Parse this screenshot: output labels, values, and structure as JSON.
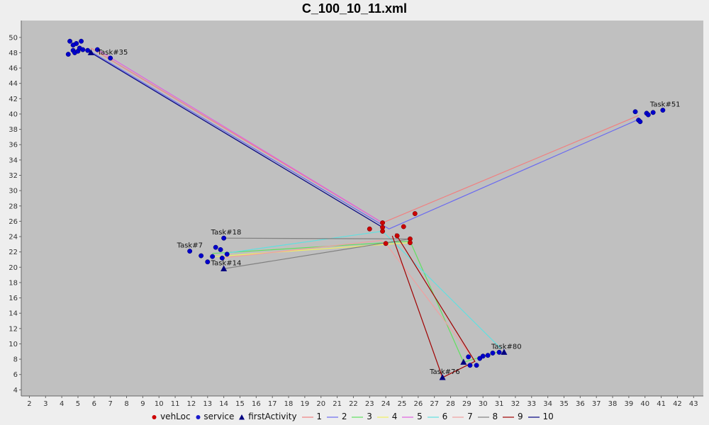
{
  "chart_data": {
    "type": "scatter",
    "title": "C_100_10_11.xml",
    "xlim": [
      1.5,
      43.6
    ],
    "ylim": [
      3.2,
      52.2
    ],
    "xticks": [
      2,
      3,
      4,
      5,
      6,
      7,
      8,
      9,
      10,
      11,
      12,
      13,
      14,
      15,
      16,
      17,
      18,
      19,
      20,
      21,
      22,
      23,
      24,
      25,
      26,
      27,
      28,
      29,
      30,
      31,
      32,
      33,
      34,
      35,
      36,
      37,
      38,
      39,
      40,
      41,
      42,
      43
    ],
    "yticks": [
      4,
      6,
      8,
      10,
      12,
      14,
      16,
      18,
      20,
      22,
      24,
      26,
      28,
      30,
      32,
      34,
      36,
      38,
      40,
      42,
      44,
      46,
      48,
      50
    ],
    "grid": false,
    "colors": {
      "background": "#c0c0c0",
      "vehLoc": "#cc0000",
      "service": "#0000cc",
      "firstActivity": "#000080"
    },
    "legend": {
      "position": "bottom",
      "items": [
        {
          "label": "vehLoc",
          "kind": "dot",
          "color": "#cc0000"
        },
        {
          "label": "service",
          "kind": "dot",
          "color": "#1a1acc"
        },
        {
          "label": "firstActivity",
          "kind": "triangle",
          "color": "#000080"
        },
        {
          "label": "1",
          "kind": "line",
          "color": "#f08080"
        },
        {
          "label": "2",
          "kind": "line",
          "color": "#6a6af0"
        },
        {
          "label": "3",
          "kind": "line",
          "color": "#5fe05f"
        },
        {
          "label": "4",
          "kind": "line",
          "color": "#f0f060"
        },
        {
          "label": "5",
          "kind": "line",
          "color": "#e060e0"
        },
        {
          "label": "6",
          "kind": "line",
          "color": "#60e0e0"
        },
        {
          "label": "7",
          "kind": "line",
          "color": "#f0a0a0"
        },
        {
          "label": "8",
          "kind": "line",
          "color": "#808080"
        },
        {
          "label": "9",
          "kind": "line",
          "color": "#a00000"
        },
        {
          "label": "10",
          "kind": "line",
          "color": "#000080"
        }
      ]
    },
    "vehLoc": [
      [
        23.0,
        25.0
      ],
      [
        23.8,
        25.8
      ],
      [
        23.8,
        25.2
      ],
      [
        23.8,
        24.7
      ],
      [
        24.0,
        23.1
      ],
      [
        24.7,
        24.1
      ],
      [
        25.1,
        25.3
      ],
      [
        25.5,
        23.7
      ],
      [
        25.5,
        23.2
      ],
      [
        25.8,
        27.0
      ]
    ],
    "service": [
      [
        4.4,
        47.8
      ],
      [
        4.7,
        48.3
      ],
      [
        4.8,
        48.0
      ],
      [
        5.0,
        48.2
      ],
      [
        5.1,
        48.6
      ],
      [
        5.3,
        48.4
      ],
      [
        5.6,
        48.3
      ],
      [
        4.9,
        49.2
      ],
      [
        5.2,
        49.5
      ],
      [
        4.7,
        49.0
      ],
      [
        6.2,
        48.4
      ],
      [
        7.0,
        47.3
      ],
      [
        4.5,
        49.5
      ],
      [
        13.0,
        20.7
      ],
      [
        12.6,
        21.5
      ],
      [
        13.3,
        21.4
      ],
      [
        13.9,
        21.2
      ],
      [
        14.2,
        21.7
      ],
      [
        13.5,
        22.6
      ],
      [
        14.0,
        23.8
      ],
      [
        11.9,
        22.1
      ],
      [
        13.8,
        22.3
      ],
      [
        29.2,
        7.2
      ],
      [
        29.6,
        7.2
      ],
      [
        29.8,
        8.1
      ],
      [
        30.3,
        8.5
      ],
      [
        30.6,
        8.8
      ],
      [
        31.0,
        8.9
      ],
      [
        29.1,
        8.3
      ],
      [
        30.0,
        8.4
      ],
      [
        39.6,
        39.2
      ],
      [
        39.7,
        39.0
      ],
      [
        40.1,
        40.1
      ],
      [
        40.2,
        39.9
      ],
      [
        39.4,
        40.3
      ],
      [
        41.1,
        40.5
      ],
      [
        40.5,
        40.2
      ]
    ],
    "firstActivity": [
      [
        5.8,
        48.0
      ],
      [
        14.0,
        19.8
      ],
      [
        27.5,
        5.6
      ],
      [
        28.8,
        7.6
      ],
      [
        31.3,
        8.9
      ]
    ],
    "task_labels": [
      {
        "text": "Task#35",
        "x": 7.0,
        "y": 47.3
      },
      {
        "text": "Task#18",
        "x": 14.0,
        "y": 23.8
      },
      {
        "text": "Task#7",
        "x": 11.9,
        "y": 22.1
      },
      {
        "text": "Task#14",
        "x": 14.0,
        "y": 19.8
      },
      {
        "text": "Task#76",
        "x": 27.5,
        "y": 5.6
      },
      {
        "text": "Task#51",
        "x": 41.1,
        "y": 40.5
      },
      {
        "text": "Task#80",
        "x": 31.3,
        "y": 8.9
      }
    ],
    "series": [
      {
        "name": "1",
        "color": "#f08080",
        "points": [
          [
            5.8,
            48.6
          ],
          [
            23.8,
            25.8
          ],
          [
            39.6,
            39.8
          ]
        ]
      },
      {
        "name": "2",
        "color": "#6a6af0",
        "points": [
          [
            5.6,
            48.4
          ],
          [
            24.2,
            25.0
          ],
          [
            39.5,
            39.2
          ]
        ]
      },
      {
        "name": "3",
        "color": "#5fe05f",
        "points": [
          [
            13.3,
            21.8
          ],
          [
            25.5,
            23.4
          ],
          [
            28.8,
            7.6
          ],
          [
            31.0,
            9.0
          ]
        ]
      },
      {
        "name": "4",
        "color": "#f0f060",
        "points": [
          [
            13.5,
            21.4
          ],
          [
            24.7,
            23.1
          ],
          [
            25.5,
            23.2
          ]
        ]
      },
      {
        "name": "5",
        "color": "#e060e0",
        "points": [
          [
            6.2,
            48.4
          ],
          [
            23.8,
            25.8
          ]
        ]
      },
      {
        "name": "6",
        "color": "#60e0e0",
        "points": [
          [
            14.0,
            21.8
          ],
          [
            23.8,
            24.7
          ],
          [
            31.1,
            9.4
          ]
        ]
      },
      {
        "name": "7",
        "color": "#f0a0a0",
        "points": [
          [
            13.9,
            21.2
          ],
          [
            23.7,
            23.5
          ],
          [
            24.0,
            23.1
          ],
          [
            29.5,
            7.8
          ]
        ]
      },
      {
        "name": "8",
        "color": "#808080",
        "points": [
          [
            14.0,
            19.8
          ],
          [
            25.5,
            23.7
          ],
          [
            14.0,
            23.8
          ]
        ]
      },
      {
        "name": "9",
        "color": "#a00000",
        "points": [
          [
            24.4,
            24.1
          ],
          [
            27.5,
            5.6
          ],
          [
            29.5,
            7.7
          ],
          [
            24.6,
            24.4
          ]
        ]
      },
      {
        "name": "10",
        "color": "#000080",
        "points": [
          [
            5.8,
            48.0
          ],
          [
            23.8,
            25.2
          ]
        ]
      }
    ]
  }
}
